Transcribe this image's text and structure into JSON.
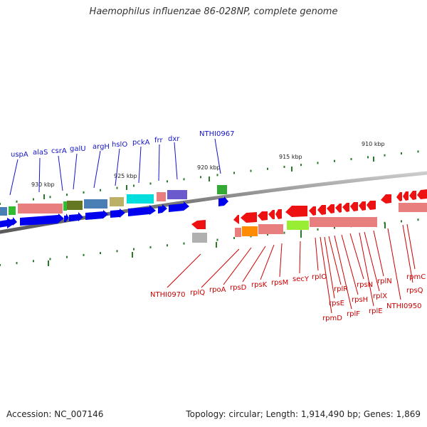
{
  "title": "Haemophilus influenzae 86-028NP, complete genome",
  "footer": {
    "accession": "Accession: NC_007146",
    "summary": "Topology: circular; Length: 1,914,490 bp; Genes: 1,869"
  },
  "ticks": [
    {
      "label": "930 kbp"
    },
    {
      "label": "925 kbp"
    },
    {
      "label": "920 kbp"
    },
    {
      "label": "915 kbp"
    },
    {
      "label": "910 kbp"
    }
  ],
  "forward_genes": [
    {
      "name": "uspA"
    },
    {
      "name": "alaS"
    },
    {
      "name": "csrA"
    },
    {
      "name": "galU"
    },
    {
      "name": "argH"
    },
    {
      "name": "hslO"
    },
    {
      "name": "pckA"
    },
    {
      "name": "frr"
    },
    {
      "name": "dxr"
    },
    {
      "name": "NTHI0967"
    }
  ],
  "reverse_genes": [
    {
      "name": "NTHI0970"
    },
    {
      "name": "rplQ"
    },
    {
      "name": "rpoA"
    },
    {
      "name": "rpsD"
    },
    {
      "name": "rpsK"
    },
    {
      "name": "rpsM"
    },
    {
      "name": "secY"
    },
    {
      "name": "rplO"
    },
    {
      "name": "rpmD"
    },
    {
      "name": "rpsE"
    },
    {
      "name": "rplR"
    },
    {
      "name": "rplF"
    },
    {
      "name": "rpsH"
    },
    {
      "name": "rpsN"
    },
    {
      "name": "rplE"
    },
    {
      "name": "rplX"
    },
    {
      "name": "rplN"
    },
    {
      "name": "NTHI0950"
    },
    {
      "name": "rpsQ"
    },
    {
      "name": "rpmC"
    }
  ],
  "colors": {
    "forward_label": "#1414c8",
    "reverse_label": "#cc0000",
    "forward_arrow": "#0000ee",
    "reverse_arrow": "#ee1111",
    "tick": "#2a7a2a",
    "backbone": "#888888"
  }
}
